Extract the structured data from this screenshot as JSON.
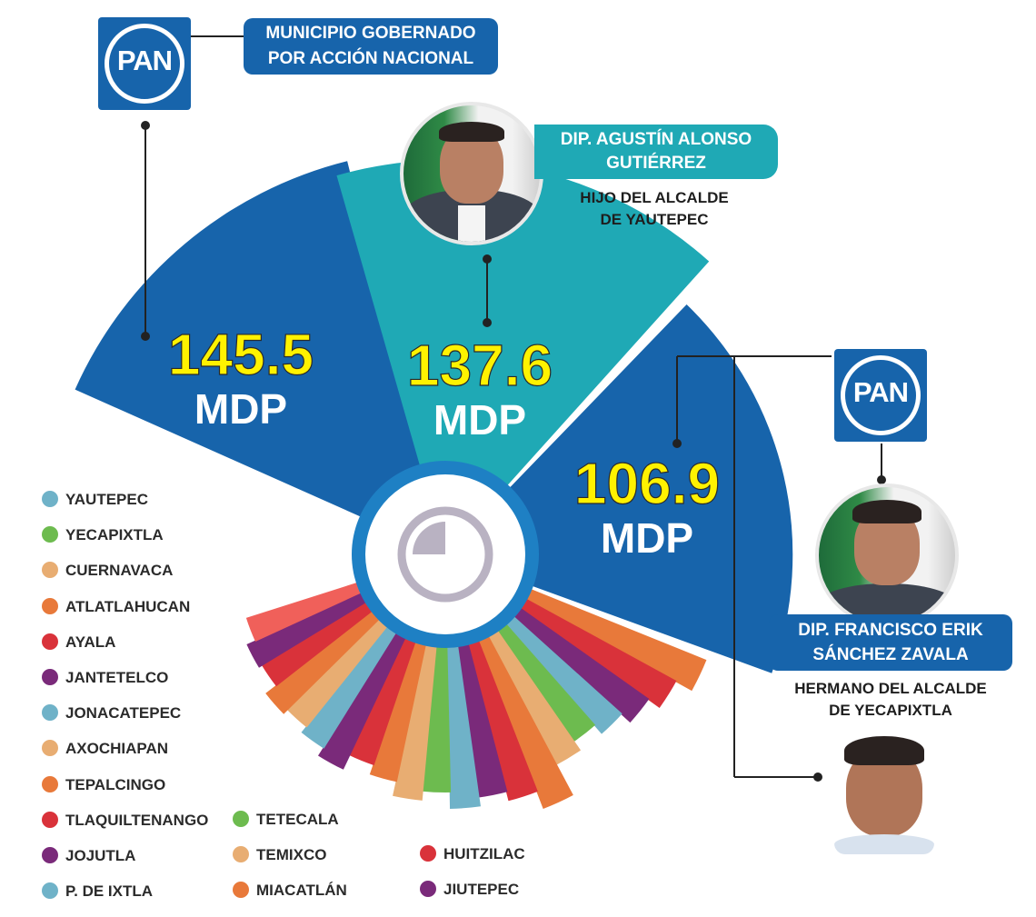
{
  "header": {
    "pan_logo_text": "PAN",
    "title_line1": "MUNICIPIO GOBERNADO",
    "title_line2": "POR ACCIÓN NACIONAL"
  },
  "people": [
    {
      "name_line1": "DIP. AGUSTÍN ALONSO",
      "name_line2": "GUTIÉRREZ",
      "relation_line1": "HIJO DEL ALCALDE",
      "relation_line2": "DE YAUTEPEC"
    },
    {
      "name_line1": "DIP. FRANCISCO ERIK",
      "name_line2": "SÁNCHEZ ZAVALA",
      "relation_line1": "HERMANO DEL ALCALDE",
      "relation_line2": "DE YECAPIXTLA"
    }
  ],
  "colors": {
    "pan_blue": "#1764ab",
    "teal": "#1fa9b5",
    "value_yellow": "#fff200",
    "center_ring": "#1e80c4"
  },
  "chart_data": {
    "type": "polar-area",
    "unit": "MDP",
    "highlighted": [
      {
        "value": 145.5,
        "label": "145.5",
        "unit": "MDP",
        "color": "#1764ab",
        "party": "PAN"
      },
      {
        "value": 137.6,
        "label": "137.6",
        "unit": "MDP",
        "color": "#1fa9b5"
      },
      {
        "value": 106.9,
        "label": "106.9",
        "unit": "MDP",
        "color": "#1764ab",
        "party": "PAN"
      }
    ],
    "legend": [
      {
        "name": "YAUTEPEC",
        "color": "#6fb2c8"
      },
      {
        "name": "YECAPIXTLA",
        "color": "#6dbb4f"
      },
      {
        "name": "CUERNAVACA",
        "color": "#e8ad72"
      },
      {
        "name": "ATLATLAHUCAN",
        "color": "#e8793a"
      },
      {
        "name": "AYALA",
        "color": "#d9323a"
      },
      {
        "name": "JANTETELCO",
        "color": "#7a2a7a"
      },
      {
        "name": "JONACATEPEC",
        "color": "#6fb2c8"
      },
      {
        "name": "AXOCHIAPAN",
        "color": "#e8ad72"
      },
      {
        "name": "TEPALCINGO",
        "color": "#e8793a"
      },
      {
        "name": "TLAQUILTENANGO",
        "color": "#d9323a"
      },
      {
        "name": "JOJUTLA",
        "color": "#7a2a7a"
      },
      {
        "name": "P. DE IXTLA",
        "color": "#6fb2c8"
      },
      {
        "name": "TETECALA",
        "color": "#6dbb4f"
      },
      {
        "name": "TEMIXCO",
        "color": "#e8ad72"
      },
      {
        "name": "MIACATLÁN",
        "color": "#e8793a"
      },
      {
        "name": "HUITZILAC",
        "color": "#d9323a"
      },
      {
        "name": "JIUTEPEC",
        "color": "#7a2a7a"
      }
    ]
  }
}
